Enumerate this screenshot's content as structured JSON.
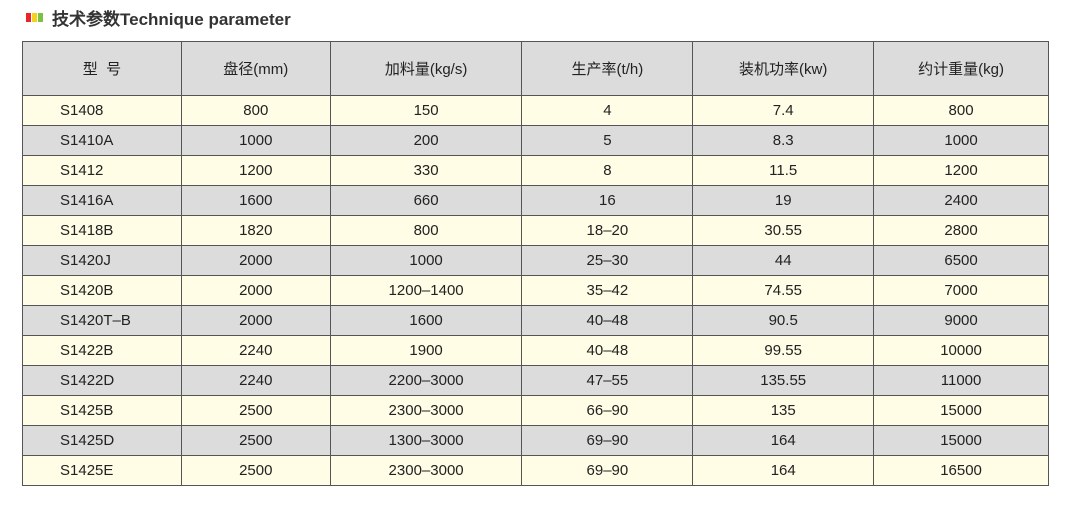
{
  "title": "技术参数Technique parameter",
  "icon_colors": [
    "#e8262a",
    "#f2d21c",
    "#7cc242"
  ],
  "colors": {
    "header_bg": "#dcdcdc",
    "row_odd": "#fffde6",
    "row_even": "#dcdcdc"
  },
  "headers": [
    "型  号",
    "盘径(mm)",
    "加料量(kg/s)",
    "生产率(t/h)",
    "装机功率(kw)",
    "约计重量(kg)"
  ],
  "rows": [
    [
      "S1408",
      "800",
      "150",
      "4",
      "7.4",
      "800"
    ],
    [
      "S1410A",
      "1000",
      "200",
      "5",
      "8.3",
      "1000"
    ],
    [
      "S1412",
      "1200",
      "330",
      "8",
      "11.5",
      "1200"
    ],
    [
      "S1416A",
      "1600",
      "660",
      "16",
      "19",
      "2400"
    ],
    [
      "S1418B",
      "1820",
      "800",
      "18–20",
      "30.55",
      "2800"
    ],
    [
      "S1420J",
      "2000",
      "1000",
      "25–30",
      "44",
      "6500"
    ],
    [
      "S1420B",
      "2000",
      "1200–1400",
      "35–42",
      "74.55",
      "7000"
    ],
    [
      "S1420T–B",
      "2000",
      "1600",
      "40–48",
      "90.5",
      "9000"
    ],
    [
      "S1422B",
      "2240",
      "1900",
      "40–48",
      "99.55",
      "10000"
    ],
    [
      "S1422D",
      "2240",
      "2200–3000",
      "47–55",
      "135.55",
      "11000"
    ],
    [
      "S1425B",
      "2500",
      "2300–3000",
      "66–90",
      "135",
      "15000"
    ],
    [
      "S1425D",
      "2500",
      "1300–3000",
      "69–90",
      "164",
      "15000"
    ],
    [
      "S1425E",
      "2500",
      "2300–3000",
      "69–90",
      "164",
      "16500"
    ]
  ]
}
